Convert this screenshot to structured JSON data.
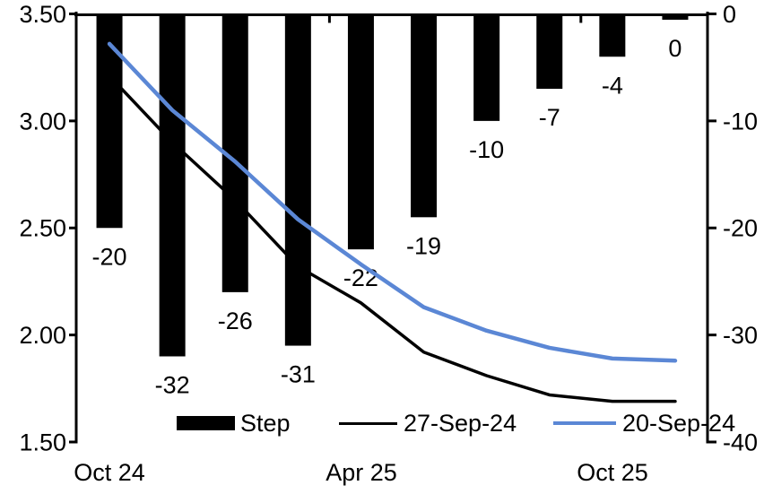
{
  "chart_data": {
    "type": "combo",
    "subtype": "bar + line, dual y-axis (policy rate path with per-meeting steps in bp)",
    "n_categories": 10,
    "x_axis": {
      "labels": [
        "Oct 24",
        "Apr 25",
        "Oct 25"
      ],
      "label_category_indexes": [
        0,
        4,
        8
      ]
    },
    "left_axis": {
      "max": 3.5,
      "min": 1.5,
      "ticks": [
        "3.50",
        "3.00",
        "2.50",
        "2.00",
        "1.50"
      ]
    },
    "right_axis": {
      "max": 0,
      "min": -40,
      "ticks": [
        "0",
        "-10",
        "-20",
        "-30",
        "-40"
      ]
    },
    "bar_series": {
      "name": "Step",
      "axis": "right",
      "color": "#000000",
      "values": [
        -20,
        -32,
        -26,
        -31,
        -22,
        -19,
        -10,
        -7,
        -4,
        0
      ],
      "labels": [
        "-20",
        "-32",
        "-26",
        "-31",
        "-22",
        "-19",
        "-10",
        "-7",
        "-4",
        "0"
      ]
    },
    "line_series": [
      {
        "name": "27-Sep-24",
        "axis": "left",
        "color": "#000000",
        "values": [
          3.21,
          2.9,
          2.63,
          2.32,
          2.15,
          1.92,
          1.81,
          1.72,
          1.69,
          1.69
        ]
      },
      {
        "name": "20-Sep-24",
        "axis": "left",
        "color": "#5B87D5",
        "values": [
          3.36,
          3.05,
          2.81,
          2.54,
          2.33,
          2.13,
          2.02,
          1.94,
          1.89,
          1.88
        ]
      }
    ],
    "legend": [
      {
        "label": "Step",
        "type": "bar",
        "color": "#000000"
      },
      {
        "label": "27-Sep-24",
        "type": "line",
        "color": "#000000"
      },
      {
        "label": "20-Sep-24",
        "type": "line",
        "color": "#5B87D5"
      }
    ]
  }
}
